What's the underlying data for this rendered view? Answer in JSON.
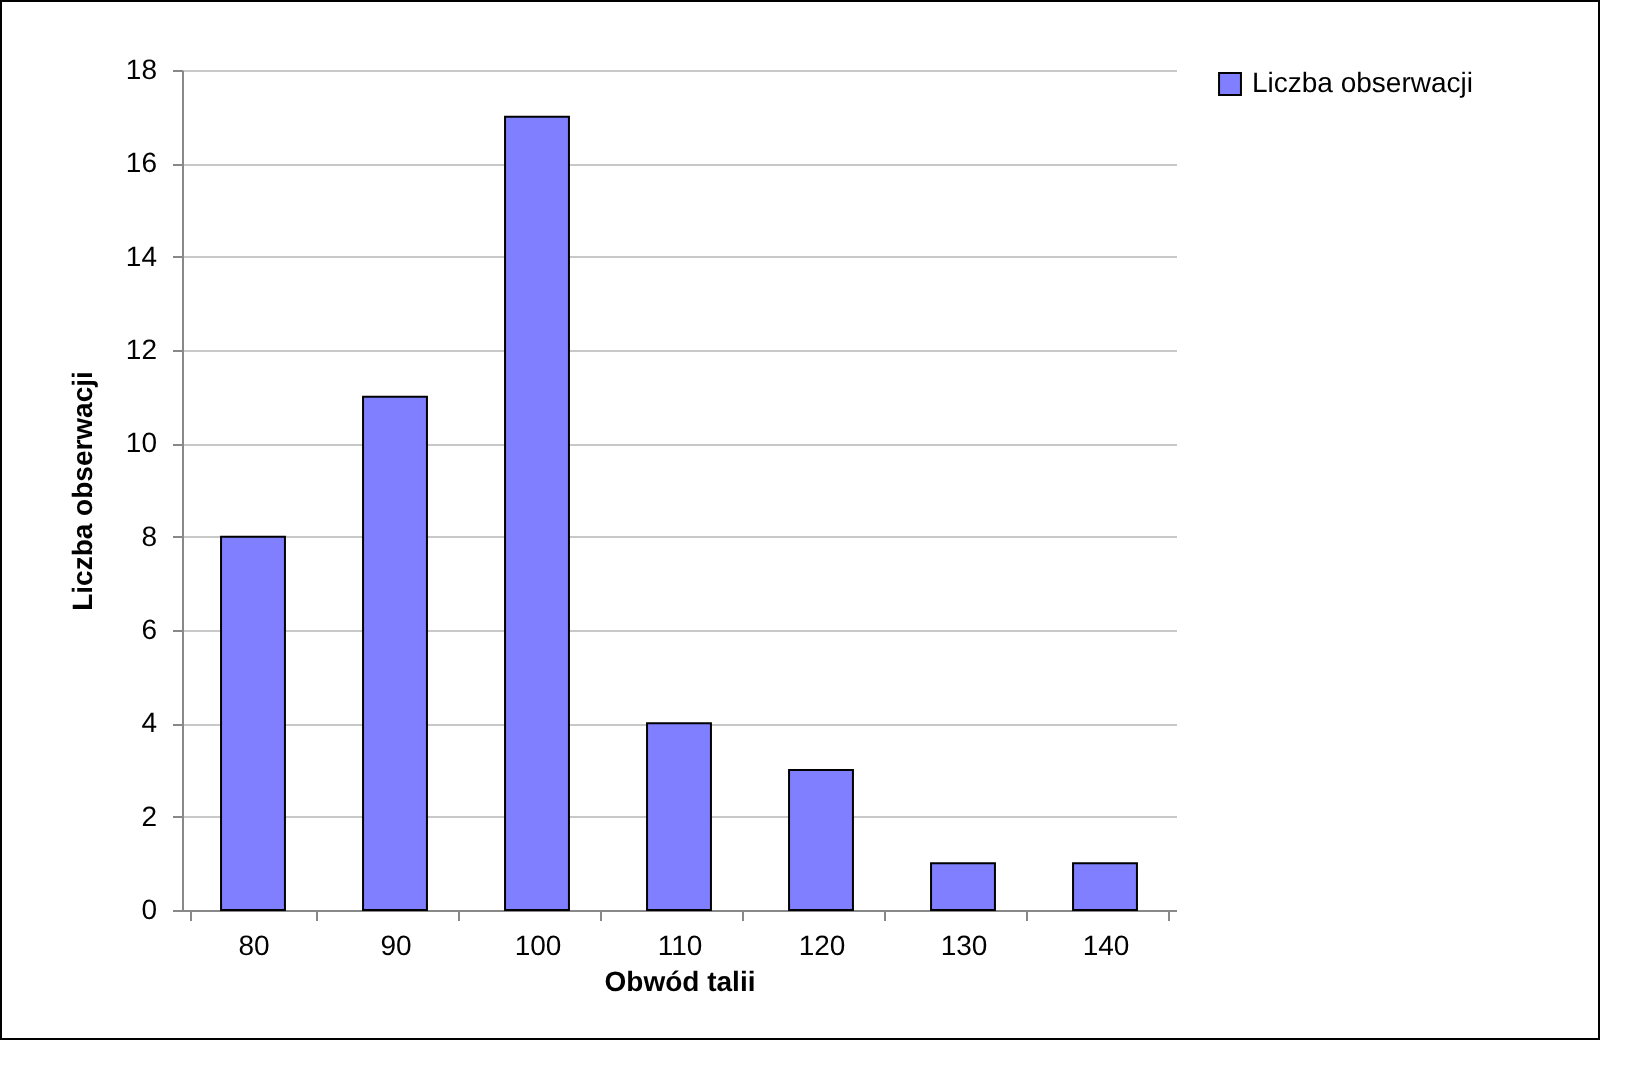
{
  "chart_data": {
    "type": "bar",
    "xlabel": "Obwód talii",
    "ylabel": "Liczba obserwacji",
    "categories": [
      "80",
      "90",
      "100",
      "110",
      "120",
      "130",
      "140"
    ],
    "series": [
      {
        "name": "Liczba obserwacji",
        "color": "#7f7fff",
        "values": [
          8,
          11,
          17,
          4,
          3,
          1,
          1
        ]
      }
    ],
    "ylim": [
      0,
      18
    ],
    "yticks": [
      0,
      2,
      4,
      6,
      8,
      10,
      12,
      14,
      16,
      18
    ],
    "grid": "y",
    "legend": "right"
  }
}
